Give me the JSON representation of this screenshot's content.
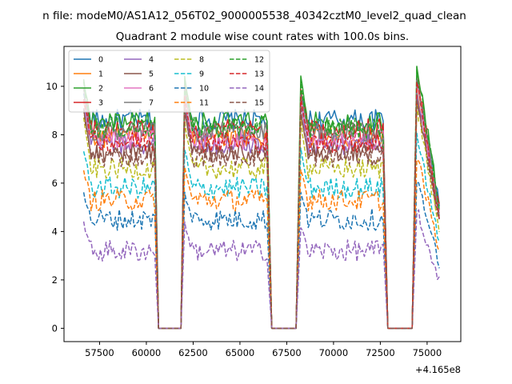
{
  "chart_data": {
    "type": "line",
    "suptitle": "n file: modeM0/AS1A12_056T02_9000005538_40342cztM0_level2_quad_clean",
    "title": "Quadrant 2 module wise count rates with 100.0s bins.",
    "xlabel": "",
    "ylabel": "",
    "x_offset_label": "+4.165e8",
    "xlim": [
      55600,
      76800
    ],
    "ylim": [
      -0.55,
      11.65
    ],
    "x_ticks": [
      57500,
      60000,
      62500,
      65000,
      67500,
      70000,
      72500,
      75000
    ],
    "x_tick_labels": [
      "57500",
      "60000",
      "62500",
      "65000",
      "67500",
      "70000",
      "72500",
      "75000"
    ],
    "y_ticks": [
      0,
      2,
      4,
      6,
      8,
      10
    ],
    "y_tick_labels": [
      "0",
      "2",
      "4",
      "6",
      "8",
      "10"
    ],
    "grid": false,
    "legend_placement": "top-left",
    "segments": [
      {
        "start": 56650,
        "end": 60450
      },
      {
        "start": 62050,
        "end": 66500
      },
      {
        "start": 68250,
        "end": 72700
      },
      {
        "start": 74450,
        "end": 75650
      }
    ],
    "gaps_at_zero": [
      {
        "start": 60650,
        "end": 61850
      },
      {
        "start": 66700,
        "end": 68050
      },
      {
        "start": 72900,
        "end": 74250
      }
    ],
    "series": [
      {
        "name": "0",
        "color": "#1f77b4",
        "dashed": false,
        "level": 8.6,
        "spike": 9.7
      },
      {
        "name": "1",
        "color": "#ff7f0e",
        "dashed": false,
        "level": 7.9,
        "spike": 9.3
      },
      {
        "name": "2",
        "color": "#2ca02c",
        "dashed": false,
        "level": 8.5,
        "spike": 10.3
      },
      {
        "name": "3",
        "color": "#d62728",
        "dashed": false,
        "level": 8.2,
        "spike": 9.9
      },
      {
        "name": "4",
        "color": "#9467bd",
        "dashed": false,
        "level": 7.6,
        "spike": 9.2
      },
      {
        "name": "5",
        "color": "#8c564b",
        "dashed": false,
        "level": 7.3,
        "spike": 9.0
      },
      {
        "name": "6",
        "color": "#e377c2",
        "dashed": false,
        "level": 7.8,
        "spike": 9.4
      },
      {
        "name": "7",
        "color": "#7f7f7f",
        "dashed": false,
        "level": 8.1,
        "spike": 9.8
      },
      {
        "name": "8",
        "color": "#bcbd22",
        "dashed": true,
        "level": 6.6,
        "spike": 8.6
      },
      {
        "name": "9",
        "color": "#17becf",
        "dashed": true,
        "level": 5.8,
        "spike": 7.4
      },
      {
        "name": "10",
        "color": "#1f77b4",
        "dashed": true,
        "level": 4.5,
        "spike": 5.6
      },
      {
        "name": "11",
        "color": "#ff7f0e",
        "dashed": true,
        "level": 5.3,
        "spike": 6.6
      },
      {
        "name": "12",
        "color": "#2ca02c",
        "dashed": true,
        "level": 8.3,
        "spike": 10.1
      },
      {
        "name": "13",
        "color": "#d62728",
        "dashed": true,
        "level": 7.7,
        "spike": 9.6
      },
      {
        "name": "14",
        "color": "#9467bd",
        "dashed": true,
        "level": 3.2,
        "spike": 4.3
      },
      {
        "name": "15",
        "color": "#8c564b",
        "dashed": true,
        "level": 7.1,
        "spike": 9.0
      }
    ]
  }
}
